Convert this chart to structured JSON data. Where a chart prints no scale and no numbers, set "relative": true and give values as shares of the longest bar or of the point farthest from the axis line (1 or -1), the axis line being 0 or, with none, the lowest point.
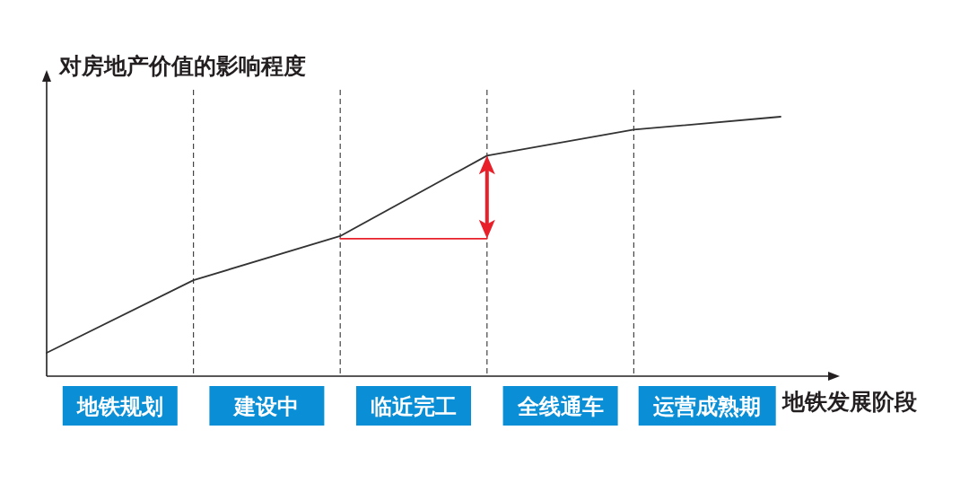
{
  "chart_data": {
    "type": "line",
    "relative": true,
    "ylabel": "对房地产价值的影响程度",
    "xlabel": "地铁发展阶段",
    "categories": [
      null,
      null,
      null,
      null,
      null,
      null
    ],
    "series": [
      {
        "color": "#333333",
        "values": [
          0.09,
          0.37,
          0.54,
          0.85,
          0.95,
          1
        ]
      },
      {
        "color": "#e8202a",
        "values": [
          null,
          null,
          0.53,
          0.53,
          null,
          null
        ]
      }
    ],
    "annotations": [
      "地铁规划",
      "建设中",
      "临近完工",
      "全线通车",
      "运营成熟期"
    ],
    "grid": "x",
    "line_style": "solid",
    "marker": "none"
  }
}
